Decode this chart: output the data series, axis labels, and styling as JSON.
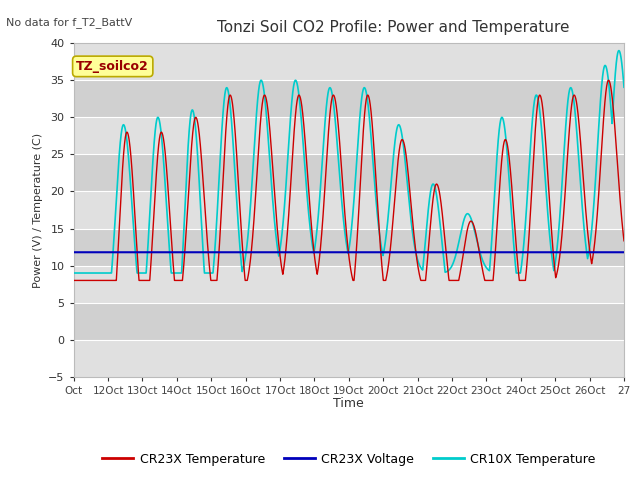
{
  "title": "Tonzi Soil CO2 Profile: Power and Temperature",
  "no_data_text": "No data for f_T2_BattV",
  "ylabel": "Power (V) / Temperature (C)",
  "xlabel": "Time",
  "ylim": [
    -5,
    40
  ],
  "xlim": [
    0,
    16
  ],
  "yticks": [
    -5,
    0,
    5,
    10,
    15,
    20,
    25,
    30,
    35,
    40
  ],
  "xtick_labels": [
    "Oct",
    "12Oct",
    "13Oct",
    "14Oct",
    "15Oct",
    "16Oct",
    "17Oct",
    "18Oct",
    "19Oct",
    "20Oct",
    "21Oct",
    "22Oct",
    "23Oct",
    "24Oct",
    "25Oct",
    "26Oct",
    "27"
  ],
  "voltage_level": 11.8,
  "fig_bg_color": "#ffffff",
  "plot_bg_color": "#e8e8e8",
  "grid_color": "#ffffff",
  "cr23x_color": "#cc0000",
  "cr23x_voltage_color": "#0000bb",
  "cr10x_color": "#00cccc",
  "cr23x_lw": 1.0,
  "cr10x_lw": 1.2,
  "voltage_lw": 1.5,
  "band_colors": [
    "#e0e0e0",
    "#d0d0d0"
  ],
  "title_fontsize": 11,
  "tick_fontsize": 8,
  "legend_fontsize": 9
}
